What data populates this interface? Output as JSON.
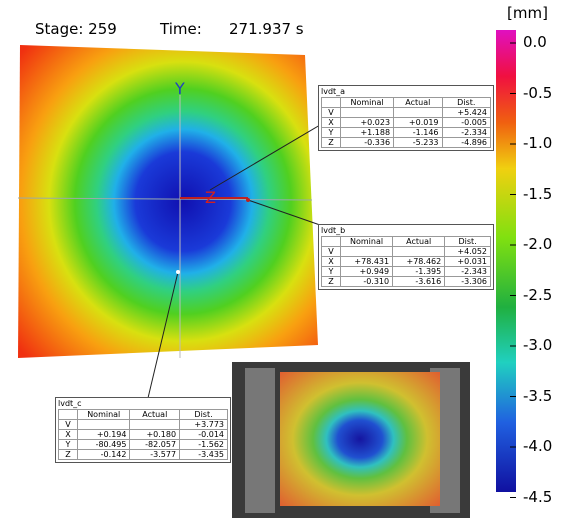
{
  "header": {
    "stage": "Stage: 259",
    "time_label": "Time:",
    "time_value": "271.937 s"
  },
  "axes": {
    "y": "Y",
    "z": "Z"
  },
  "colorbar": {
    "unit": "[mm]",
    "ticks": [
      "0.0",
      "-0.5",
      "-1.0",
      "-1.5",
      "-2.0",
      "-2.5",
      "-3.0",
      "-3.5",
      "-4.0",
      "-4.5"
    ]
  },
  "columns": [
    "Nominal",
    "Actual",
    "Dist."
  ],
  "tables": [
    {
      "title": "lvdt_a",
      "rows": [
        {
          "label": "V",
          "dist": "+5.424"
        },
        {
          "label": "X",
          "nominal": "+0.023",
          "actual": "+0.019",
          "dist": "-0.005"
        },
        {
          "label": "Y",
          "nominal": "+1.188",
          "actual": "-1.146",
          "dist": "-2.334"
        },
        {
          "label": "Z",
          "nominal": "-0.336",
          "actual": "-5.233",
          "dist": "-4.896"
        }
      ]
    },
    {
      "title": "lvdt_b",
      "rows": [
        {
          "label": "V",
          "dist": "+4.052"
        },
        {
          "label": "X",
          "nominal": "+78.431",
          "actual": "+78.462",
          "dist": "+0.031"
        },
        {
          "label": "Y",
          "nominal": "+0.949",
          "actual": "-1.395",
          "dist": "-2.343"
        },
        {
          "label": "Z",
          "nominal": "-0.310",
          "actual": "-3.616",
          "dist": "-3.306"
        }
      ]
    },
    {
      "title": "lvdt_c",
      "rows": [
        {
          "label": "V",
          "dist": "+3.773"
        },
        {
          "label": "X",
          "nominal": "+0.194",
          "actual": "+0.180",
          "dist": "-0.014"
        },
        {
          "label": "Y",
          "nominal": "-80.495",
          "actual": "-82.057",
          "dist": "-1.562"
        },
        {
          "label": "Z",
          "nominal": "-0.142",
          "actual": "-3.577",
          "dist": "-3.435"
        }
      ]
    }
  ]
}
